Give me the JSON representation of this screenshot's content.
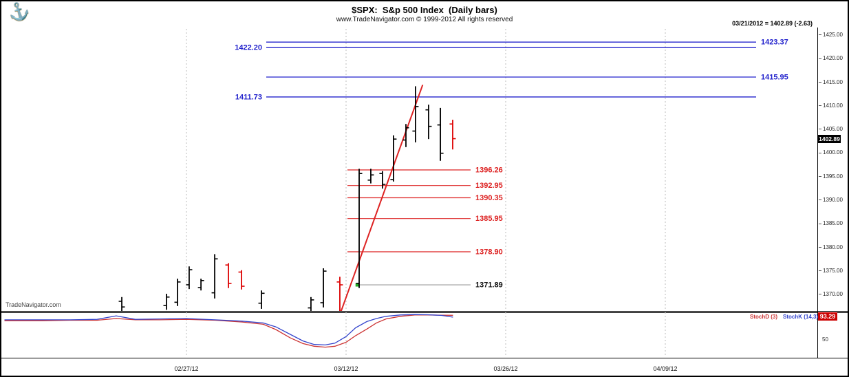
{
  "header": {
    "title": "$SPX:  S&p 500 Index  (Daily bars)",
    "subtitle": "www.TradeNavigator.com © 1999-2012 All rights reserved",
    "quote": "03/21/2012 = 1402.89 (-2.63)"
  },
  "watermark": "TradeNavigator.com",
  "logo_icon": "anchor",
  "colors": {
    "up_bar": "#000000",
    "down_bar": "#dd0000",
    "level_blue": "#2222cc",
    "level_red": "#dd2222",
    "level_gray": "#999999",
    "trend_red": "#dd2222",
    "stoch_k_blue": "#3344cc",
    "stoch_d_red": "#cc3333",
    "grid": "#bbbbbb",
    "price_badge_bg": "#000000",
    "stoch_badge_bg": "#cc0000",
    "marker_green": "#22aa22"
  },
  "chart_data": {
    "type": "bar",
    "title": "$SPX: S&p 500 Index (Daily bars)",
    "symbol": "$SPX",
    "last_date": "03/21/2012",
    "last_price": "1402.89",
    "last_price_num": 1402.89,
    "last_change": "-2.63",
    "y_axis": {
      "min": 1366,
      "max": 1426.5,
      "ticks": [
        {
          "label": "1425.00",
          "price": 1425
        },
        {
          "label": "1420.00",
          "price": 1420
        },
        {
          "label": "1415.00",
          "price": 1415
        },
        {
          "label": "1410.00",
          "price": 1410
        },
        {
          "label": "1405.00",
          "price": 1405
        },
        {
          "label": "1400.00",
          "price": 1400
        },
        {
          "label": "1395.00",
          "price": 1395
        },
        {
          "label": "1390.00",
          "price": 1390
        },
        {
          "label": "1385.00",
          "price": 1385
        },
        {
          "label": "1380.00",
          "price": 1380
        },
        {
          "label": "1375.00",
          "price": 1375
        },
        {
          "label": "1370.00",
          "price": 1370
        }
      ]
    },
    "x_axis": {
      "labels": [
        {
          "label": "02/27/12",
          "t": 0
        },
        {
          "label": "03/12/12",
          "t": 10
        },
        {
          "label": "03/26/12",
          "t": 20
        },
        {
          "label": "04/09/12",
          "t": 30
        }
      ]
    },
    "bars": [
      {
        "t": -4.05,
        "o": 1368.4,
        "h": 1369.3,
        "l": 1366.1,
        "c": 1367.2,
        "dir": "up"
      },
      {
        "t": -1.25,
        "o": 1367.5,
        "h": 1370.0,
        "l": 1366.6,
        "c": 1369.3,
        "dir": "up"
      },
      {
        "t": -0.56,
        "o": 1368.2,
        "h": 1373.2,
        "l": 1367.4,
        "c": 1372.5,
        "dir": "up"
      },
      {
        "t": 0.17,
        "o": 1371.9,
        "h": 1375.8,
        "l": 1371.0,
        "c": 1375.1,
        "dir": "up"
      },
      {
        "t": 0.91,
        "o": 1371.3,
        "h": 1373.2,
        "l": 1370.7,
        "c": 1372.8,
        "dir": "up"
      },
      {
        "t": 1.77,
        "o": 1370.2,
        "h": 1378.4,
        "l": 1369.0,
        "c": 1377.4,
        "dir": "up"
      },
      {
        "t": 2.63,
        "o": 1376.1,
        "h": 1376.5,
        "l": 1371.2,
        "c": 1372.2,
        "dir": "down"
      },
      {
        "t": 3.45,
        "o": 1374.6,
        "h": 1375.0,
        "l": 1370.9,
        "c": 1371.6,
        "dir": "down"
      },
      {
        "t": 4.7,
        "o": 1368.0,
        "h": 1370.7,
        "l": 1366.8,
        "c": 1370.1,
        "dir": "up"
      },
      {
        "t": 7.8,
        "o": 1367.0,
        "h": 1369.3,
        "l": 1366.1,
        "c": 1368.7,
        "dir": "up"
      },
      {
        "t": 8.58,
        "o": 1368.1,
        "h": 1375.4,
        "l": 1367.1,
        "c": 1374.8,
        "dir": "up"
      },
      {
        "t": 9.61,
        "o": 1372.5,
        "h": 1373.6,
        "l": 1366.1,
        "c": 1371.89,
        "dir": "down"
      },
      {
        "t": 10.82,
        "o": 1372.2,
        "h": 1396.5,
        "l": 1371.2,
        "c": 1395.5,
        "dir": "up"
      },
      {
        "t": 11.55,
        "o": 1394.1,
        "h": 1396.5,
        "l": 1393.4,
        "c": 1395.2,
        "dir": "up"
      },
      {
        "t": 12.28,
        "o": 1395.5,
        "h": 1396.0,
        "l": 1392.3,
        "c": 1393.2,
        "dir": "up"
      },
      {
        "t": 12.97,
        "o": 1394.2,
        "h": 1403.6,
        "l": 1393.8,
        "c": 1402.8,
        "dir": "up"
      },
      {
        "t": 13.75,
        "o": 1402.6,
        "h": 1406.0,
        "l": 1401.1,
        "c": 1405.2,
        "dir": "up"
      },
      {
        "t": 14.35,
        "o": 1404.5,
        "h": 1414.0,
        "l": 1402.1,
        "c": 1409.7,
        "dir": "up"
      },
      {
        "t": 15.17,
        "o": 1409.0,
        "h": 1410.1,
        "l": 1402.8,
        "c": 1405.5,
        "dir": "up"
      },
      {
        "t": 15.91,
        "o": 1405.8,
        "h": 1409.4,
        "l": 1398.2,
        "c": 1399.8,
        "dir": "up"
      },
      {
        "t": 16.68,
        "o": 1406.0,
        "h": 1406.9,
        "l": 1400.6,
        "c": 1402.89,
        "dir": "down"
      }
    ],
    "levels": {
      "blue": [
        {
          "label": "1423.37",
          "price": 1423.37,
          "side": "right"
        },
        {
          "label": "1422.20",
          "price": 1422.2,
          "side": "left"
        },
        {
          "label": "1415.95",
          "price": 1415.95,
          "side": "right"
        },
        {
          "label": "1411.73",
          "price": 1411.73,
          "side": "left"
        }
      ],
      "red": [
        {
          "label": "1396.26",
          "price": 1396.26
        },
        {
          "label": "1392.95",
          "price": 1392.95
        },
        {
          "label": "1390.35",
          "price": 1390.35
        },
        {
          "label": "1385.95",
          "price": 1385.95
        },
        {
          "label": "1378.90",
          "price": 1378.9
        }
      ],
      "support": {
        "label": "1371.89",
        "price": 1371.89
      }
    },
    "trendline": {
      "t1": 9.55,
      "p1": 1365.0,
      "t2": 14.8,
      "p2": 1414.3
    },
    "marker": {
      "t": 10.7,
      "price": 1371.89
    },
    "indicator": {
      "label_d": "StochD (3)",
      "label_k": "StochK (14,3)",
      "value": "93.29",
      "value_num": 93.29,
      "mid_label": "50",
      "k": [
        [
          -11.4,
          83
        ],
        [
          -9,
          83
        ],
        [
          -7.3,
          83
        ],
        [
          -5.6,
          84
        ],
        [
          -4.4,
          92
        ],
        [
          -3.2,
          84
        ],
        [
          -1.7,
          85
        ],
        [
          0,
          86
        ],
        [
          1.8,
          83
        ],
        [
          3.5,
          80
        ],
        [
          4.8,
          76
        ],
        [
          5.6,
          67
        ],
        [
          6.5,
          50
        ],
        [
          7.3,
          35
        ],
        [
          8,
          27
        ],
        [
          8.7,
          26
        ],
        [
          9.3,
          30
        ],
        [
          10,
          45
        ],
        [
          10.6,
          65
        ],
        [
          11.3,
          79
        ],
        [
          11.9,
          86
        ],
        [
          12.5,
          91
        ],
        [
          13.4,
          94
        ],
        [
          14.3,
          95
        ],
        [
          15.1,
          94.5
        ],
        [
          16,
          93
        ],
        [
          16.7,
          89
        ]
      ],
      "d": [
        [
          -11.4,
          81
        ],
        [
          -9,
          81
        ],
        [
          -7.3,
          82
        ],
        [
          -5.6,
          82
        ],
        [
          -4.4,
          86
        ],
        [
          -3.2,
          83
        ],
        [
          -1.7,
          83
        ],
        [
          0,
          84
        ],
        [
          1.8,
          82
        ],
        [
          3.5,
          78
        ],
        [
          4.8,
          73
        ],
        [
          5.6,
          61
        ],
        [
          6.5,
          42
        ],
        [
          7.3,
          29
        ],
        [
          8,
          23
        ],
        [
          8.7,
          21
        ],
        [
          9.3,
          23
        ],
        [
          10,
          32
        ],
        [
          10.6,
          47
        ],
        [
          11.3,
          62
        ],
        [
          11.9,
          76
        ],
        [
          12.5,
          85
        ],
        [
          13.4,
          91
        ],
        [
          14.3,
          94
        ],
        [
          15.1,
          94
        ],
        [
          16,
          93.5
        ],
        [
          16.7,
          93.29
        ]
      ]
    }
  }
}
